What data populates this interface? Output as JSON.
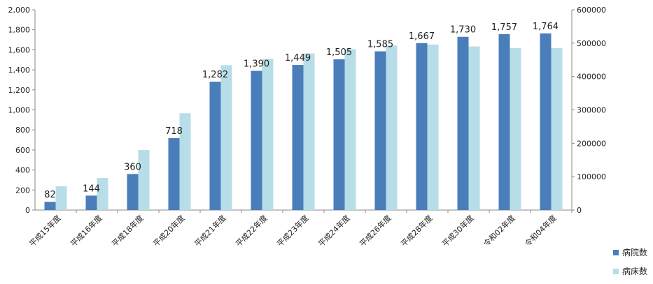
{
  "chart_data": {
    "type": "bar",
    "categories": [
      "平成15年度",
      "平成16年度",
      "平成18年度",
      "平成20年度",
      "平成21年度",
      "平成22年度",
      "平成23年度",
      "平成24年度",
      "平成26年度",
      "平成28年度",
      "平成30年度",
      "令和02年度",
      "令和04年度"
    ],
    "series": [
      {
        "name": "病院数",
        "axis": "left",
        "color": "#4a7ebb",
        "values": [
          82,
          144,
          360,
          718,
          1282,
          1390,
          1449,
          1505,
          1585,
          1667,
          1730,
          1757,
          1764
        ],
        "labels": [
          "82",
          "144",
          "360",
          "718",
          "1,282",
          "1,390",
          "1,449",
          "1,505",
          "1,585",
          "1,667",
          "1,730",
          "1,757",
          "1,764"
        ]
      },
      {
        "name": "病床数",
        "axis": "right",
        "color": "#b7dde8",
        "values": [
          71000,
          96000,
          180000,
          290000,
          434000,
          453000,
          469000,
          482000,
          493000,
          496000,
          490000,
          485000,
          485000
        ]
      }
    ],
    "y_left": {
      "min": 0,
      "max": 2000,
      "step": 200,
      "ticks": [
        "0",
        "200",
        "400",
        "600",
        "800",
        "1,000",
        "1,200",
        "1,400",
        "1,600",
        "1,800",
        "2,000"
      ]
    },
    "y_right": {
      "min": 0,
      "max": 600000,
      "step": 100000,
      "ticks": [
        "0",
        "100000",
        "200000",
        "300000",
        "400000",
        "500000",
        "600000"
      ]
    },
    "grid": false,
    "legend_position": "bottom-right",
    "title": "",
    "xlabel": "",
    "ylabel": ""
  }
}
